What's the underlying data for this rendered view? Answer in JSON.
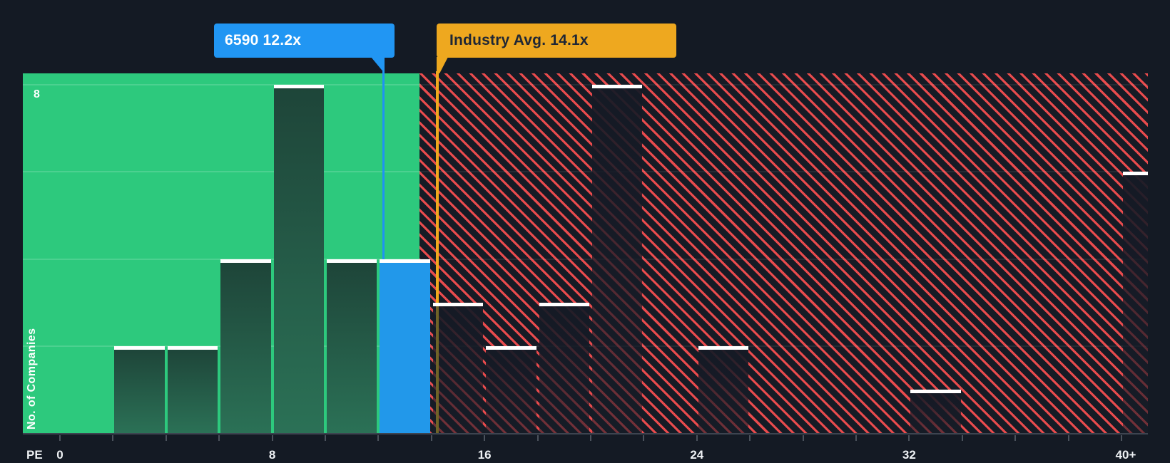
{
  "tooltips": {
    "company": {
      "label": "6590 12.2x",
      "accent_color": "#2196f3"
    },
    "industry": {
      "label": "Industry Avg. 14.1x",
      "accent_color": "#eea81f"
    }
  },
  "y_axis": {
    "title": "No. of Companies",
    "tick_label": "8",
    "tick_value": 8
  },
  "x_axis": {
    "label": "PE",
    "ticks": [
      {
        "label": "0",
        "pe": 0
      },
      {
        "label": "8",
        "pe": 8
      },
      {
        "label": "16",
        "pe": 16
      },
      {
        "label": "24",
        "pe": 24
      },
      {
        "label": "32",
        "pe": 32
      },
      {
        "label": "40+",
        "pe": 40
      }
    ]
  },
  "chart_data": {
    "type": "bar",
    "title": "PE ratio histogram: company vs industry",
    "xlabel": "PE",
    "ylabel": "No. of Companies",
    "bin_width": 2,
    "ylim": [
      0,
      8.3
    ],
    "xlim": [
      -1.4,
      41
    ],
    "grid_values": [
      2,
      4,
      6,
      8
    ],
    "x_tick_labels": [
      "0",
      "8",
      "16",
      "24",
      "32",
      "40+"
    ],
    "bins": [
      {
        "from": 0,
        "to": 2,
        "count": 0,
        "zone": "green"
      },
      {
        "from": 2,
        "to": 4,
        "count": 2,
        "zone": "green"
      },
      {
        "from": 4,
        "to": 6,
        "count": 2,
        "zone": "green"
      },
      {
        "from": 6,
        "to": 8,
        "count": 4,
        "zone": "green"
      },
      {
        "from": 8,
        "to": 10,
        "count": 8,
        "zone": "green"
      },
      {
        "from": 10,
        "to": 12,
        "count": 4,
        "zone": "green"
      },
      {
        "from": 12,
        "to": 14,
        "count": 4,
        "zone": "company"
      },
      {
        "from": 14,
        "to": 16,
        "count": 3,
        "zone": "red"
      },
      {
        "from": 16,
        "to": 18,
        "count": 2,
        "zone": "red"
      },
      {
        "from": 18,
        "to": 20,
        "count": 3,
        "zone": "red"
      },
      {
        "from": 20,
        "to": 22,
        "count": 8,
        "zone": "red"
      },
      {
        "from": 22,
        "to": 24,
        "count": 0,
        "zone": "red"
      },
      {
        "from": 24,
        "to": 26,
        "count": 2,
        "zone": "red"
      },
      {
        "from": 26,
        "to": 28,
        "count": 0,
        "zone": "red"
      },
      {
        "from": 28,
        "to": 30,
        "count": 0,
        "zone": "red"
      },
      {
        "from": 30,
        "to": 32,
        "count": 0,
        "zone": "red"
      },
      {
        "from": 32,
        "to": 34,
        "count": 1,
        "zone": "red"
      },
      {
        "from": 34,
        "to": 36,
        "count": 0,
        "zone": "red"
      },
      {
        "from": 36,
        "to": 38,
        "count": 0,
        "zone": "red"
      },
      {
        "from": 38,
        "to": 40,
        "count": 0,
        "zone": "red"
      },
      {
        "from": 40,
        "to": null,
        "count": 6,
        "zone": "red",
        "open_ended": true
      }
    ],
    "company_marker": {
      "name": "6590",
      "pe": 12.2,
      "label": "6590 12.2x"
    },
    "industry_avg": {
      "pe": 14.1,
      "label": "Industry Avg. 14.1x"
    },
    "legend": "none",
    "grid": "on"
  },
  "colors": {
    "background": "#141a24",
    "undervalued_zone_green": "#2dc97d",
    "overvalued_hatch_red": "#e94b4d",
    "company_blue": "#2298ea",
    "industry_yellow": "#eea81f",
    "bar_cap_white": "#ffffff"
  }
}
